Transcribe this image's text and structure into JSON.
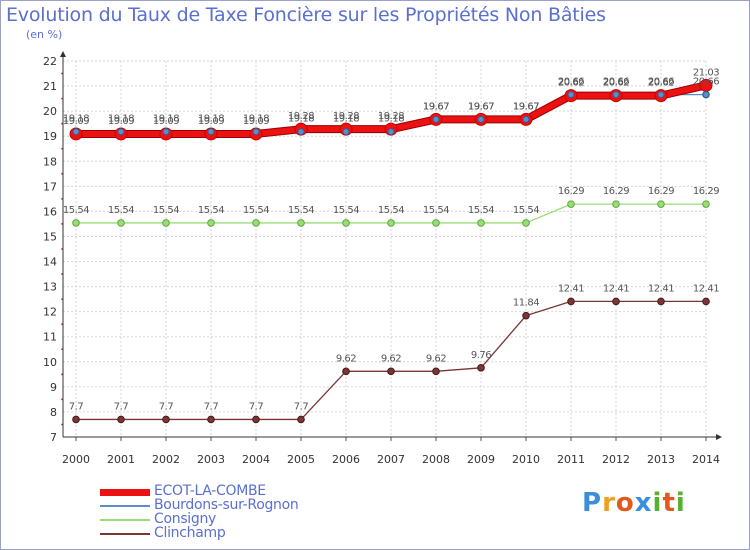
{
  "title": "Evolution du Taux de Taxe Foncière sur les Propriétés Non Bâties",
  "unit_label": "(en %)",
  "logo": {
    "letters": [
      "P",
      "r",
      "o",
      "x",
      "i",
      "t",
      "i"
    ],
    "colors": [
      "#3a8fd8",
      "#f0a020",
      "#e05a20",
      "#3a8fd8",
      "#58b030",
      "#e05a20",
      "#58b030"
    ]
  },
  "chart_data": {
    "type": "line",
    "title": "Evolution du Taux de Taxe Foncière sur les Propriétés Non Bâties",
    "ylabel": "(en %)",
    "xlabel": "",
    "ylim": [
      7,
      22
    ],
    "y_ticks": [
      "7",
      "8",
      "9",
      "10",
      "11",
      "12",
      "13",
      "14",
      "15",
      "16",
      "17",
      "18",
      "19",
      "20",
      "21",
      "22"
    ],
    "categories": [
      "2000",
      "2001",
      "2002",
      "2003",
      "2004",
      "2005",
      "2006",
      "2007",
      "2008",
      "2009",
      "2010",
      "2011",
      "2012",
      "2013",
      "2014"
    ],
    "series": [
      {
        "name": "ECOT-LA-COMBE",
        "color": "#ee1111",
        "values": [
          19.09,
          19.09,
          19.09,
          19.09,
          19.09,
          19.28,
          19.28,
          19.28,
          19.67,
          19.67,
          19.67,
          20.62,
          20.62,
          20.62,
          21.03
        ],
        "labels": [
          "19.09",
          "19.09",
          "19.09",
          "19.09",
          "19.09",
          "19.28",
          "19.28",
          "19.28",
          "19.67",
          "19.67",
          "19.67",
          "20.62",
          "20.62",
          "20.62",
          "21.03"
        ]
      },
      {
        "name": "Bourdons-sur-Rognon",
        "color": "#5b8fc7",
        "values": [
          19.18,
          19.18,
          19.18,
          19.18,
          19.18,
          19.18,
          19.18,
          19.18,
          19.67,
          19.67,
          19.67,
          20.66,
          20.66,
          20.66,
          20.66
        ],
        "labels": [
          "19.18",
          "19.18",
          "19.18",
          "19.18",
          "19.18",
          "19.18",
          "19.18",
          "19.18",
          "19.67",
          "19.67",
          "19.67",
          "20.66",
          "20.66",
          "20.66",
          "20.66"
        ]
      },
      {
        "name": "Consigny",
        "color": "#99dd77",
        "values": [
          15.54,
          15.54,
          15.54,
          15.54,
          15.54,
          15.54,
          15.54,
          15.54,
          15.54,
          15.54,
          15.54,
          16.29,
          16.29,
          16.29,
          16.29
        ],
        "labels": [
          "15.54",
          "15.54",
          "15.54",
          "15.54",
          "15.54",
          "15.54",
          "15.54",
          "15.54",
          "15.54",
          "15.54",
          "15.54",
          "16.29",
          "16.29",
          "16.29",
          "16.29"
        ]
      },
      {
        "name": "Clinchamp",
        "color": "#7a3535",
        "values": [
          7.7,
          7.7,
          7.7,
          7.7,
          7.7,
          7.7,
          9.62,
          9.62,
          9.62,
          9.76,
          11.84,
          12.41,
          12.41,
          12.41,
          12.41
        ],
        "labels": [
          "7.7",
          "7.7",
          "7.7",
          "7.7",
          "7.7",
          "7.7",
          "9.62",
          "9.62",
          "9.62",
          "9.76",
          "11.84",
          "12.41",
          "12.41",
          "12.41",
          "12.41"
        ]
      }
    ]
  }
}
